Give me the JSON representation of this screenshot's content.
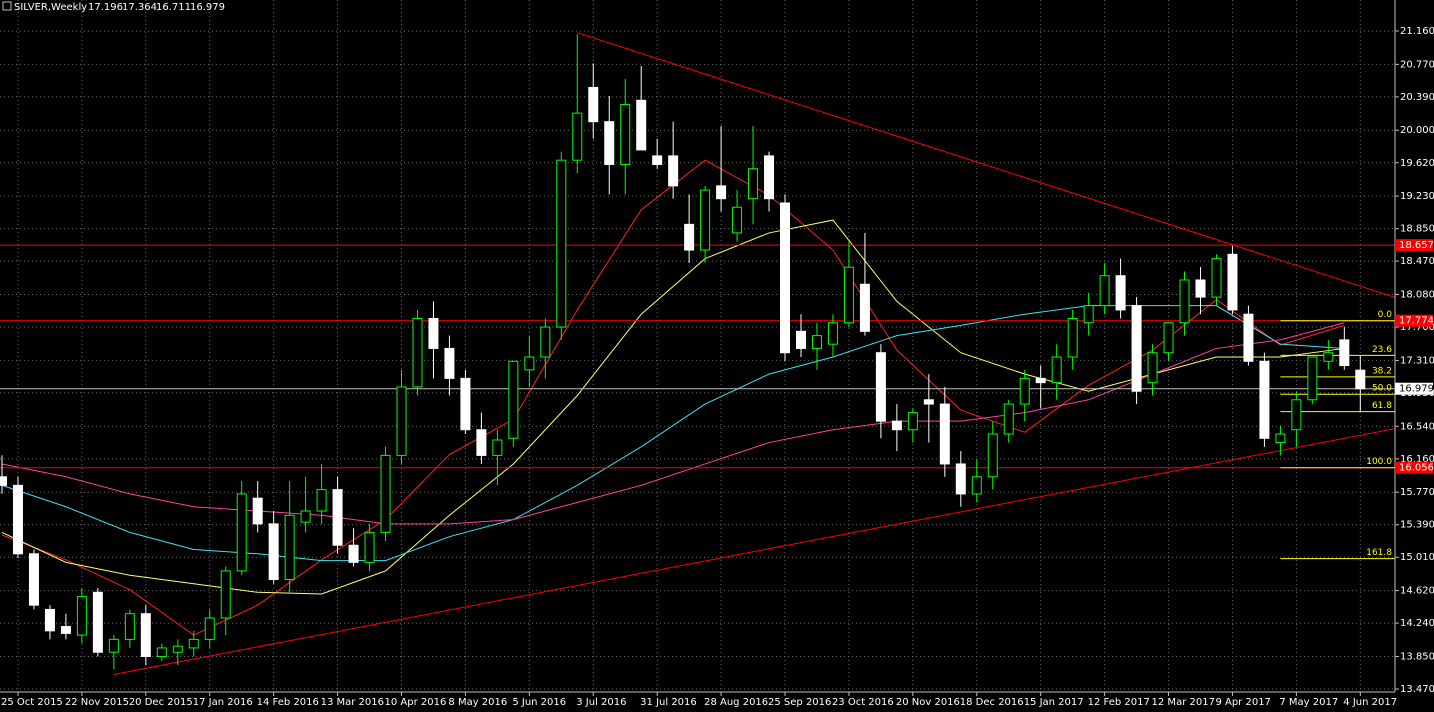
{
  "chart_data": {
    "type": "candlestick",
    "title": "SILVER,Weekly",
    "categories": [
      null,
      "25 Oct 2015",
      null,
      null,
      null,
      "22 Nov 2015",
      null,
      null,
      null,
      "20 Dec 2015",
      null,
      null,
      null,
      "17 Jan 2016",
      null,
      null,
      null,
      "14 Feb 2016",
      null,
      null,
      null,
      "13 Mar 2016",
      null,
      null,
      null,
      "10 Apr 2016",
      null,
      null,
      null,
      "8 May 2016",
      null,
      null,
      null,
      "5 Jun 2016",
      null,
      null,
      null,
      "3 Jul 2016",
      null,
      null,
      null,
      "31 Jul 2016",
      null,
      null,
      null,
      "28 Aug 2016",
      null,
      null,
      null,
      "25 Sep 2016",
      null,
      null,
      null,
      "23 Oct 2016",
      null,
      null,
      null,
      "20 Nov 2016",
      null,
      null,
      null,
      "18 Dec 2016",
      null,
      null,
      null,
      "15 Jan 2017",
      null,
      null,
      null,
      "12 Feb 2017",
      null,
      null,
      null,
      "12 Mar 2017",
      null,
      null,
      null,
      "9 Apr 2017",
      null,
      null,
      null,
      "7 May 2017",
      null,
      null,
      null,
      "4 Jun 2017"
    ],
    "open": [
      15.95,
      15.85,
      15.05,
      14.4,
      14.2,
      14.1,
      14.6,
      13.9,
      14.05,
      14.35,
      13.85,
      13.9,
      13.95,
      14.05,
      14.3,
      14.85,
      15.7,
      15.4,
      14.75,
      15.42,
      15.55,
      15.8,
      15.15,
      14.95,
      15.3,
      16.2,
      17.0,
      17.8,
      17.45,
      17.1,
      16.5,
      16.2,
      16.4,
      17.2,
      17.35,
      17.7,
      19.65,
      20.5,
      20.1,
      19.6,
      20.35,
      19.7,
      19.7,
      18.9,
      18.6,
      19.35,
      18.8,
      19.2,
      19.7,
      19.15,
      17.65,
      17.45,
      17.5,
      17.75,
      18.2,
      17.4,
      16.6,
      16.5,
      16.85,
      16.8,
      16.1,
      15.75,
      15.95,
      16.45,
      16.8,
      17.1,
      17.05,
      17.35,
      17.75,
      17.95,
      18.3,
      17.95,
      17.05,
      17.4,
      17.75,
      18.25,
      18.05,
      18.55,
      17.85,
      17.3,
      16.35,
      16.5,
      16.85,
      17.3,
      17.55,
      17.196
    ],
    "high": [
      16.2,
      15.95,
      15.1,
      14.45,
      14.35,
      14.65,
      14.65,
      14.1,
      14.4,
      14.45,
      14.0,
      14.05,
      14.15,
      14.4,
      14.9,
      15.9,
      15.9,
      15.55,
      15.9,
      15.95,
      16.1,
      15.95,
      15.35,
      15.4,
      16.3,
      17.2,
      17.9,
      18.0,
      17.6,
      17.2,
      16.7,
      16.5,
      17.3,
      17.6,
      17.8,
      19.75,
      21.12,
      20.78,
      20.4,
      20.6,
      20.75,
      19.9,
      20.1,
      19.25,
      19.35,
      20.05,
      19.3,
      20.05,
      19.75,
      19.25,
      17.85,
      17.75,
      17.85,
      18.7,
      18.8,
      17.5,
      16.8,
      16.75,
      17.15,
      17.0,
      16.25,
      16.15,
      16.6,
      16.85,
      17.2,
      17.25,
      17.5,
      17.9,
      18.1,
      18.45,
      18.5,
      18.05,
      17.5,
      17.75,
      18.35,
      18.4,
      18.55,
      18.65,
      17.95,
      17.4,
      16.55,
      16.95,
      17.35,
      17.55,
      17.7,
      17.364
    ],
    "low": [
      15.75,
      15.0,
      14.4,
      14.05,
      14.05,
      14.0,
      13.85,
      13.7,
      13.95,
      13.75,
      13.8,
      13.75,
      13.85,
      13.95,
      14.1,
      14.8,
      15.3,
      14.7,
      14.6,
      15.3,
      15.4,
      15.05,
      14.9,
      14.85,
      15.2,
      16.1,
      16.9,
      17.1,
      16.9,
      16.45,
      16.1,
      15.85,
      16.3,
      17.0,
      17.1,
      17.55,
      19.5,
      19.9,
      19.25,
      19.25,
      19.8,
      19.55,
      19.2,
      18.45,
      18.45,
      19.05,
      18.7,
      18.9,
      19.05,
      17.3,
      17.35,
      17.2,
      17.35,
      17.7,
      17.6,
      16.4,
      16.25,
      16.35,
      16.35,
      15.95,
      15.6,
      15.65,
      15.8,
      16.35,
      16.6,
      16.75,
      16.85,
      17.2,
      17.6,
      17.85,
      17.8,
      16.8,
      16.9,
      17.3,
      17.6,
      17.85,
      17.95,
      17.85,
      17.25,
      16.3,
      16.2,
      16.3,
      16.8,
      17.2,
      17.2,
      16.711
    ],
    "close": [
      15.85,
      15.05,
      14.45,
      14.15,
      14.12,
      14.55,
      13.9,
      14.05,
      14.35,
      13.85,
      13.95,
      13.97,
      14.05,
      14.3,
      14.85,
      15.75,
      15.4,
      14.75,
      15.5,
      15.55,
      15.8,
      15.15,
      14.95,
      15.3,
      16.2,
      17.0,
      17.8,
      17.45,
      17.1,
      16.5,
      16.2,
      16.38,
      17.3,
      17.35,
      17.7,
      19.65,
      20.2,
      20.1,
      19.6,
      20.3,
      19.77,
      19.6,
      19.35,
      18.6,
      19.3,
      19.2,
      19.1,
      19.55,
      19.2,
      17.4,
      17.45,
      17.6,
      17.75,
      18.4,
      17.65,
      16.6,
      16.5,
      16.7,
      16.8,
      16.1,
      15.75,
      15.95,
      16.45,
      16.8,
      17.1,
      17.05,
      17.35,
      17.8,
      17.95,
      18.3,
      17.9,
      16.95,
      17.4,
      17.75,
      18.25,
      18.05,
      18.5,
      17.9,
      17.3,
      16.4,
      16.45,
      16.85,
      17.35,
      17.4,
      17.25,
      16.979
    ],
    "up_color": "#00ff00",
    "down_color": "#ffffff",
    "ylim": [
      13.435,
      21.522
    ],
    "yticks": [
      {
        "value": 21.16,
        "label": "21.160"
      },
      {
        "value": 20.77,
        "label": "20.770"
      },
      {
        "value": 20.39,
        "label": "20.390"
      },
      {
        "value": 20.0,
        "label": "20.000"
      },
      {
        "value": 19.62,
        "label": "19.620"
      },
      {
        "value": 19.23,
        "label": "19.230"
      },
      {
        "value": 18.85,
        "label": "18.850"
      },
      {
        "value": 18.47,
        "label": "18.470"
      },
      {
        "value": 18.08,
        "label": "18.080"
      },
      {
        "value": 17.7,
        "label": "17.700"
      },
      {
        "value": 17.31,
        "label": "17.310"
      },
      {
        "value": 16.93,
        "label": "16.930"
      },
      {
        "value": 16.54,
        "label": "16.540"
      },
      {
        "value": 16.16,
        "label": "16.160"
      },
      {
        "value": 15.77,
        "label": "15.770"
      },
      {
        "value": 15.39,
        "label": "15.390"
      },
      {
        "value": 15.01,
        "label": "15.010"
      },
      {
        "value": 14.62,
        "label": "14.620"
      },
      {
        "value": 14.24,
        "label": "14.240"
      },
      {
        "value": 13.85,
        "label": "13.850"
      },
      {
        "value": 13.47,
        "label": "13.470"
      }
    ],
    "grid": true,
    "indicators": [
      {
        "color": "#ff2020",
        "x": [
          0,
          4,
          8,
          12,
          16,
          20,
          24,
          28,
          32,
          36,
          40,
          44,
          48,
          52,
          56,
          60,
          64,
          68,
          72,
          76,
          80,
          84
        ],
        "values": [
          15.27,
          14.98,
          14.63,
          14.1,
          14.45,
          14.98,
          15.45,
          16.21,
          16.62,
          17.9,
          19.07,
          19.65,
          19.24,
          18.6,
          17.43,
          16.73,
          16.47,
          17.02,
          17.43,
          18.02,
          17.49,
          17.72
        ]
      },
      {
        "color": "#ffff66",
        "x": [
          0,
          4,
          8,
          12,
          16,
          20,
          24,
          28,
          32,
          36,
          40,
          44,
          48,
          52,
          56,
          60,
          64,
          68,
          72,
          76,
          80,
          84
        ],
        "values": [
          15.3,
          14.95,
          14.8,
          14.7,
          14.6,
          14.58,
          14.85,
          15.5,
          16.1,
          16.9,
          17.85,
          18.5,
          18.8,
          18.95,
          18.0,
          17.4,
          17.15,
          16.95,
          17.15,
          17.35,
          17.35,
          17.45
        ]
      },
      {
        "color": "#40e0f0",
        "x": [
          0,
          4,
          8,
          12,
          16,
          20,
          24,
          28,
          32,
          36,
          40,
          44,
          48,
          52,
          56,
          60,
          64,
          68,
          72,
          76,
          80,
          84
        ],
        "values": [
          15.85,
          15.6,
          15.3,
          15.1,
          15.05,
          14.97,
          14.97,
          15.25,
          15.45,
          15.85,
          16.3,
          16.8,
          17.15,
          17.35,
          17.6,
          17.72,
          17.85,
          17.95,
          17.95,
          17.95,
          17.5,
          17.45
        ]
      },
      {
        "color": "#ff40a0",
        "x": [
          0,
          4,
          8,
          12,
          16,
          20,
          24,
          28,
          32,
          36,
          40,
          44,
          48,
          52,
          56,
          60,
          64,
          68,
          72,
          76,
          80,
          84
        ],
        "values": [
          16.1,
          15.95,
          15.75,
          15.6,
          15.55,
          15.5,
          15.4,
          15.4,
          15.45,
          15.65,
          15.85,
          16.1,
          16.35,
          16.5,
          16.6,
          16.6,
          16.7,
          16.85,
          17.15,
          17.45,
          17.55,
          17.75
        ]
      }
    ],
    "trendlines": [
      {
        "color": "#ff0000",
        "x": [
          36,
          89.6
        ],
        "values": [
          21.14,
          17.9
        ]
      },
      {
        "color": "#ff0000",
        "x": [
          7,
          89.6
        ],
        "values": [
          13.64,
          16.6
        ]
      }
    ],
    "hlines": [
      {
        "color": "#ff0000",
        "value": 18.657
      },
      {
        "color": "#ff0000",
        "value": 17.774
      },
      {
        "color": "#ff0000",
        "value": 16.056
      },
      {
        "color": "#c0c0c0",
        "value": 16.979
      }
    ],
    "fib": {
      "color": "#ffff00",
      "x": [
        80,
        87.2
      ],
      "levels": [
        {
          "label": "0.0",
          "value": 17.774
        },
        {
          "label": "23.6",
          "value": 17.369
        },
        {
          "label": "38.2",
          "value": 17.118
        },
        {
          "label": "50.0",
          "value": 16.915
        },
        {
          "label": "61.8",
          "value": 16.712
        },
        {
          "label": "100.0",
          "value": 16.056
        },
        {
          "label": "161.8",
          "value": 14.994
        }
      ]
    }
  }
}
